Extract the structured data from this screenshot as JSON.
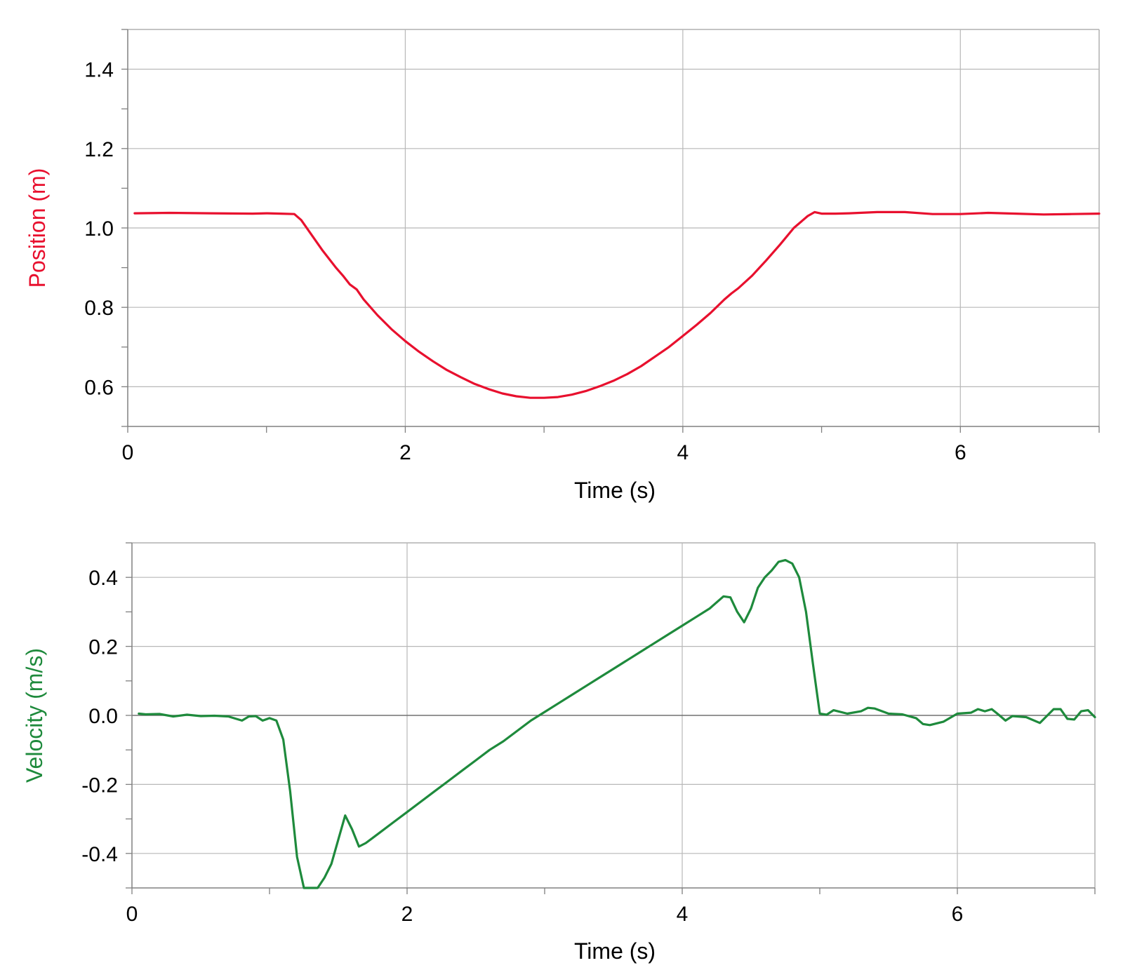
{
  "chart_data": [
    {
      "type": "line",
      "id": "position",
      "xlabel": "Time (s)",
      "ylabel": "Position (m)",
      "color": "#e8102e",
      "xlim": [
        0,
        7
      ],
      "ylim": [
        0.5,
        1.5
      ],
      "xticks": [
        0,
        2,
        4,
        6
      ],
      "xtick_labels": [
        "0",
        "2",
        "4",
        "6"
      ],
      "yticks": [
        0.6,
        0.8,
        1.0,
        1.2,
        1.4
      ],
      "ytick_labels": [
        "0.6",
        "0.8",
        "1.0",
        "1.2",
        "1.4"
      ],
      "grid": true,
      "series": [
        {
          "x": [
            0.05,
            0.3,
            0.6,
            0.9,
            1.0,
            1.1,
            1.2,
            1.25,
            1.3,
            1.4,
            1.5,
            1.55,
            1.6,
            1.65,
            1.7,
            1.8,
            1.9,
            2.0,
            2.1,
            2.2,
            2.3,
            2.4,
            2.5,
            2.6,
            2.7,
            2.8,
            2.9,
            3.0,
            3.1,
            3.2,
            3.3,
            3.4,
            3.5,
            3.6,
            3.7,
            3.8,
            3.9,
            4.0,
            4.1,
            4.2,
            4.3,
            4.35,
            4.4,
            4.5,
            4.6,
            4.7,
            4.8,
            4.9,
            4.95,
            5.0,
            5.1,
            5.2,
            5.4,
            5.6,
            5.8,
            6.0,
            6.2,
            6.4,
            6.6,
            6.8,
            7.0
          ],
          "y": [
            1.037,
            1.038,
            1.037,
            1.036,
            1.037,
            1.036,
            1.035,
            1.02,
            0.995,
            0.945,
            0.9,
            0.88,
            0.858,
            0.845,
            0.82,
            0.78,
            0.745,
            0.715,
            0.688,
            0.664,
            0.642,
            0.624,
            0.607,
            0.594,
            0.583,
            0.576,
            0.572,
            0.572,
            0.574,
            0.58,
            0.589,
            0.601,
            0.615,
            0.632,
            0.652,
            0.676,
            0.7,
            0.728,
            0.756,
            0.786,
            0.82,
            0.835,
            0.848,
            0.88,
            0.918,
            0.958,
            1.0,
            1.03,
            1.04,
            1.036,
            1.036,
            1.037,
            1.04,
            1.04,
            1.035,
            1.035,
            1.038,
            1.036,
            1.034,
            1.035,
            1.036
          ]
        }
      ]
    },
    {
      "type": "line",
      "id": "velocity",
      "xlabel": "Time (s)",
      "ylabel": "Velocity (m/s)",
      "color": "#1e8a3c",
      "xlim": [
        0,
        7
      ],
      "ylim": [
        -0.5,
        0.5
      ],
      "xticks": [
        0,
        2,
        4,
        6
      ],
      "xtick_labels": [
        "0",
        "2",
        "4",
        "6"
      ],
      "yticks": [
        -0.4,
        -0.2,
        0.0,
        0.2,
        0.4
      ],
      "ytick_labels": [
        "-0.4",
        "-0.2",
        "0.0",
        "0.2",
        "0.4"
      ],
      "grid": true,
      "series": [
        {
          "x": [
            0.05,
            0.1,
            0.2,
            0.3,
            0.4,
            0.5,
            0.6,
            0.7,
            0.8,
            0.85,
            0.9,
            0.95,
            1.0,
            1.05,
            1.1,
            1.15,
            1.2,
            1.25,
            1.3,
            1.35,
            1.4,
            1.45,
            1.5,
            1.55,
            1.6,
            1.65,
            1.7,
            1.75,
            1.8,
            1.9,
            2.0,
            2.1,
            2.2,
            2.3,
            2.4,
            2.5,
            2.6,
            2.7,
            2.8,
            2.9,
            3.0,
            3.1,
            3.2,
            3.3,
            3.4,
            3.5,
            3.6,
            3.7,
            3.8,
            3.9,
            4.0,
            4.1,
            4.2,
            4.3,
            4.35,
            4.4,
            4.45,
            4.5,
            4.55,
            4.6,
            4.65,
            4.7,
            4.75,
            4.8,
            4.85,
            4.9,
            4.95,
            5.0,
            5.05,
            5.1,
            5.2,
            5.3,
            5.35,
            5.4,
            5.5,
            5.6,
            5.7,
            5.75,
            5.8,
            5.9,
            6.0,
            6.1,
            6.15,
            6.2,
            6.25,
            6.3,
            6.35,
            6.4,
            6.5,
            6.6,
            6.7,
            6.75,
            6.8,
            6.85,
            6.9,
            6.95,
            7.0
          ],
          "y": [
            0.005,
            0.003,
            0.004,
            -0.003,
            0.002,
            -0.002,
            -0.001,
            -0.003,
            -0.015,
            -0.003,
            -0.002,
            -0.015,
            -0.008,
            -0.015,
            -0.07,
            -0.22,
            -0.41,
            -0.5,
            -0.5,
            -0.5,
            -0.47,
            -0.43,
            -0.36,
            -0.29,
            -0.33,
            -0.38,
            -0.37,
            -0.355,
            -0.34,
            -0.31,
            -0.28,
            -0.25,
            -0.22,
            -0.19,
            -0.16,
            -0.13,
            -0.1,
            -0.075,
            -0.045,
            -0.015,
            0.01,
            0.035,
            0.06,
            0.085,
            0.11,
            0.135,
            0.16,
            0.185,
            0.21,
            0.235,
            0.26,
            0.285,
            0.31,
            0.345,
            0.342,
            0.3,
            0.27,
            0.31,
            0.37,
            0.4,
            0.42,
            0.445,
            0.45,
            0.44,
            0.4,
            0.3,
            0.15,
            0.005,
            0.002,
            0.015,
            0.005,
            0.012,
            0.022,
            0.02,
            0.005,
            0.003,
            -0.008,
            -0.025,
            -0.028,
            -0.018,
            0.005,
            0.008,
            0.018,
            0.012,
            0.018,
            0.002,
            -0.015,
            -0.002,
            -0.005,
            -0.022,
            0.018,
            0.018,
            -0.01,
            -0.012,
            0.012,
            0.015,
            -0.005
          ]
        }
      ]
    }
  ]
}
